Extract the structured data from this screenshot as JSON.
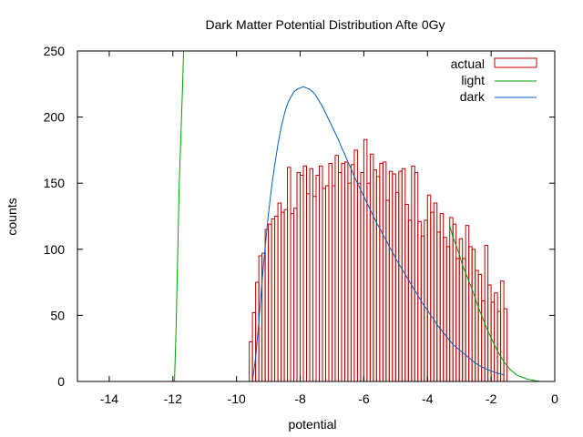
{
  "chart_data": {
    "type": "bar",
    "title": "Dark Matter Potential Distribution Afte 0Gy",
    "xlabel": "potential",
    "ylabel": "counts",
    "xlim": [
      -15,
      0
    ],
    "ylim": [
      0,
      250
    ],
    "xticks": [
      -14,
      -12,
      -10,
      -8,
      -6,
      -4,
      -2,
      0
    ],
    "yticks": [
      0,
      50,
      100,
      150,
      200,
      250
    ],
    "legend_position": "top-right",
    "colors": {
      "actual": "#c00000",
      "light": "#00a000",
      "dark": "#0060c0"
    },
    "histogram": {
      "name": "actual",
      "bin_width": 0.1,
      "bin_starts": [
        -9.6,
        -9.5,
        -9.4,
        -9.3,
        -9.2,
        -9.1,
        -9.0,
        -8.9,
        -8.8,
        -8.7,
        -8.6,
        -8.5,
        -8.4,
        -8.3,
        -8.2,
        -8.1,
        -8.0,
        -7.9,
        -7.8,
        -7.7,
        -7.6,
        -7.5,
        -7.4,
        -7.3,
        -7.2,
        -7.1,
        -7.0,
        -6.9,
        -6.8,
        -6.7,
        -6.6,
        -6.5,
        -6.4,
        -6.3,
        -6.2,
        -6.1,
        -6.0,
        -5.9,
        -5.8,
        -5.7,
        -5.6,
        -5.5,
        -5.4,
        -5.3,
        -5.2,
        -5.1,
        -5.0,
        -4.9,
        -4.8,
        -4.7,
        -4.6,
        -4.5,
        -4.4,
        -4.3,
        -4.2,
        -4.1,
        -4.0,
        -3.9,
        -3.8,
        -3.7,
        -3.6,
        -3.5,
        -3.4,
        -3.3,
        -3.2,
        -3.1,
        -3.0,
        -2.9,
        -2.8,
        -2.7,
        -2.6,
        -2.5,
        -2.4,
        -2.3,
        -2.2,
        -2.1,
        -2.0,
        -1.9,
        -1.8,
        -1.7,
        -1.6
      ],
      "counts": [
        30,
        52,
        75,
        95,
        97,
        115,
        119,
        123,
        125,
        135,
        128,
        130,
        162,
        127,
        131,
        158,
        156,
        163,
        142,
        161,
        140,
        156,
        163,
        146,
        148,
        165,
        148,
        171,
        158,
        165,
        166,
        150,
        164,
        175,
        150,
        158,
        183,
        150,
        172,
        160,
        155,
        165,
        166,
        137,
        159,
        157,
        143,
        159,
        161,
        134,
        122,
        163,
        158,
        121,
        110,
        122,
        141,
        128,
        135,
        113,
        127,
        109,
        102,
        124,
        119,
        93,
        108,
        93,
        118,
        102,
        100,
        84,
        81,
        61,
        103,
        73,
        60,
        67,
        53,
        76,
        55
      ]
    },
    "series": [
      {
        "name": "light",
        "type": "line",
        "x": [
          -11.95,
          -11.9,
          -11.8,
          -11.7,
          -11.65
        ],
        "y": [
          0,
          40,
          150,
          220,
          260
        ],
        "x2": [
          -3.3,
          -3.2,
          -3.1,
          -3.0,
          -2.9,
          -2.8,
          -2.7,
          -2.6,
          -2.5,
          -2.4,
          -2.3,
          -2.2,
          -2.1,
          -2.0,
          -1.9,
          -1.8,
          -1.7,
          -1.6,
          -1.5,
          -1.4,
          -1.3,
          -1.2,
          -1.1,
          -1.0,
          -0.9,
          -0.8,
          -0.7,
          -0.6,
          -0.5,
          -0.45
        ],
        "y2": [
          118,
          109,
          103,
          96,
          88,
          82,
          76,
          70,
          63,
          56,
          50,
          44,
          38,
          33,
          28,
          23,
          19,
          15,
          12,
          9,
          7,
          5,
          4,
          3,
          2,
          1.5,
          1,
          0.5,
          0.2,
          0
        ]
      },
      {
        "name": "dark",
        "type": "line",
        "x": [
          -9.5,
          -9.4,
          -9.3,
          -9.2,
          -9.1,
          -9.0,
          -8.9,
          -8.8,
          -8.7,
          -8.6,
          -8.5,
          -8.4,
          -8.3,
          -8.2,
          -8.1,
          -8.0,
          -7.9,
          -7.8,
          -7.7,
          -7.6,
          -7.5,
          -7.4,
          -7.3,
          -7.2,
          -7.1,
          -7.0,
          -6.9,
          -6.8,
          -6.7,
          -6.6,
          -6.5,
          -6.4,
          -6.3,
          -6.2,
          -6.1,
          -6.0,
          -5.9,
          -5.8,
          -5.7,
          -5.6,
          -5.5,
          -5.4,
          -5.3,
          -5.2,
          -5.1,
          -5.0,
          -4.9,
          -4.8,
          -4.7,
          -4.6,
          -4.5,
          -4.4,
          -4.3,
          -4.2,
          -4.1,
          -4.0,
          -3.9,
          -3.8,
          -3.7,
          -3.6,
          -3.5,
          -3.4,
          -3.3,
          -3.2,
          -3.1,
          -3.0,
          -2.9,
          -2.8,
          -2.7,
          -2.6,
          -2.5,
          -2.4,
          -2.3,
          -2.2,
          -2.1,
          -2.0,
          -1.9,
          -1.8,
          -1.7,
          -1.6
        ],
        "y": [
          0,
          18,
          45,
          75,
          102,
          126,
          147,
          164,
          179,
          192,
          202,
          210,
          215,
          219,
          221,
          222,
          223,
          222,
          221,
          219,
          216,
          212,
          208,
          203,
          198,
          193,
          188,
          183,
          177,
          172,
          166,
          161,
          155,
          150,
          145,
          140,
          135,
          130,
          125,
          120,
          116,
          111,
          107,
          102,
          98,
          93,
          89,
          85,
          81,
          77,
          73,
          69,
          65,
          61,
          57,
          54,
          50,
          47,
          43,
          40,
          37,
          34,
          31,
          28,
          26,
          24,
          22,
          20,
          18,
          16,
          14,
          12.5,
          11,
          10,
          9,
          8,
          7,
          6.3,
          5.5,
          5
        ]
      }
    ]
  }
}
